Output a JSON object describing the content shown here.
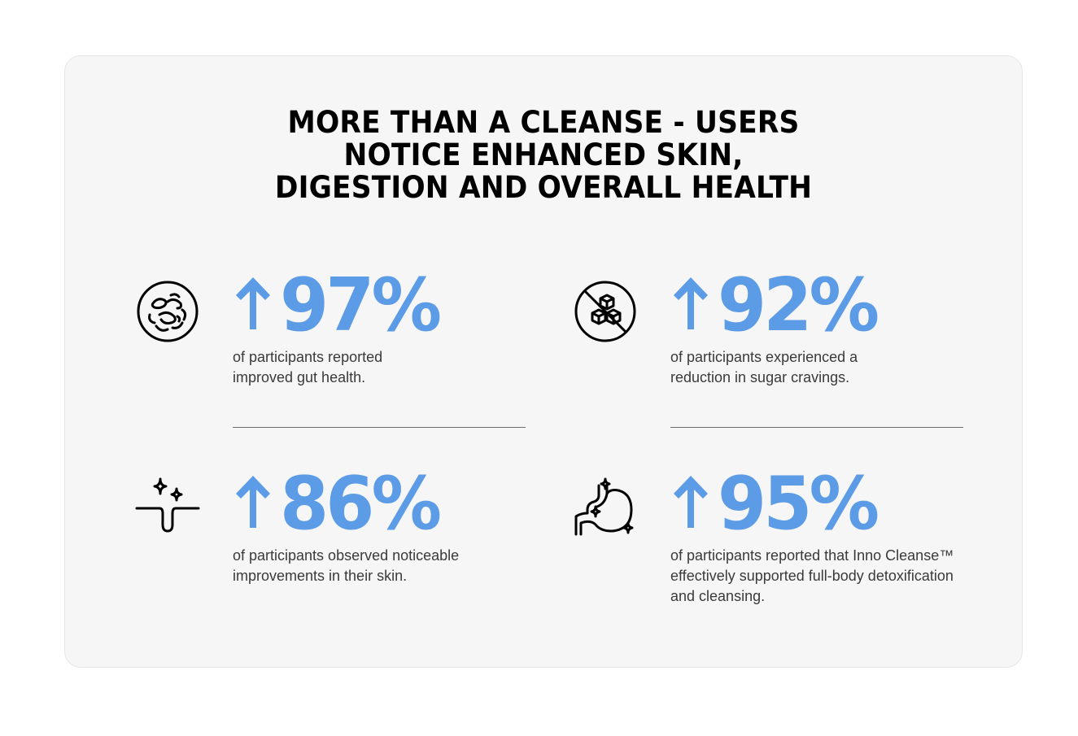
{
  "headline": {
    "line1": "MORE THAN A CLEANSE - USERS",
    "line2": "NOTICE ENHANCED SKIN,",
    "line3": "DIGESTION AND OVERALL HEALTH"
  },
  "accent_color": "#5c9be6",
  "stats": [
    {
      "icon": "gut-bacteria-icon",
      "value": "97%",
      "text": "of participants reported improved gut health."
    },
    {
      "icon": "no-sugar-cubes-icon",
      "value": "92%",
      "text": "of participants experienced a reduction in sugar cravings."
    },
    {
      "icon": "skin-sparkle-icon",
      "value": "86%",
      "text": "of participants observed noticeable improvements in their skin."
    },
    {
      "icon": "stomach-sparkle-icon",
      "value": "95%",
      "text": "of participants reported that Inno Cleanse™ effectively supported full-body detoxification and cleansing."
    }
  ]
}
